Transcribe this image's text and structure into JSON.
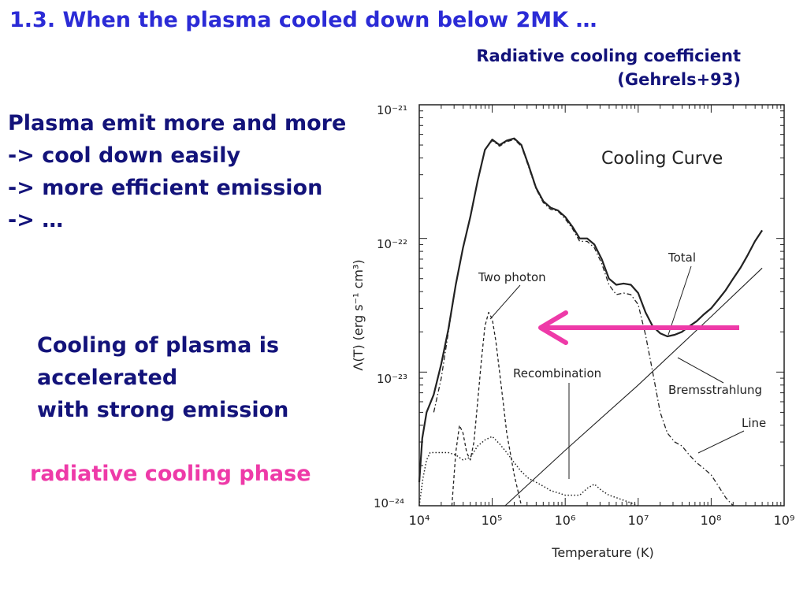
{
  "slide": {
    "title": "1.3. When the plasma cooled down below 2MK …",
    "caption_line1": "Radiative cooling coefficient",
    "caption_line2": "(Gehrels+93)",
    "bullets": [
      "Plasma emit more and more",
      "-> cool down easily",
      "-> more efficient emission",
      "-> …"
    ],
    "note_lines": [
      "Cooling of plasma is",
      "accelerated",
      "with strong emission"
    ],
    "phase_label": "radiative cooling phase",
    "phase_color": "#ee3aa8",
    "title_color": "#2b2bd6",
    "text_color": "#13137a"
  },
  "chart_data": {
    "type": "line",
    "title": "Cooling Curve",
    "xlabel": "Temperature (K)",
    "ylabel": "Λ(T) (erg s⁻¹ cm³)",
    "x_scale": "log",
    "y_scale": "log",
    "xlim": [
      10000,
      1000000000
    ],
    "ylim": [
      1e-24,
      1e-21
    ],
    "x_tick_labels": [
      "10⁴",
      "10⁵",
      "10⁶",
      "10⁷",
      "10⁸",
      "10⁹"
    ],
    "y_tick_labels": [
      "10⁻²⁴",
      "10⁻²³",
      "10⁻²²",
      "10⁻²¹"
    ],
    "series": [
      {
        "name": "Total",
        "style": "solid",
        "points": [
          [
            10000,
            1.5e-24
          ],
          [
            11000,
            3.2e-24
          ],
          [
            12600,
            5e-24
          ],
          [
            15800,
            6.8e-24
          ],
          [
            20000,
            1.15e-23
          ],
          [
            25100,
            2.1e-23
          ],
          [
            31600,
            4.5e-23
          ],
          [
            39800,
            8.5e-23
          ],
          [
            50100,
            1.45e-22
          ],
          [
            63100,
            2.7e-22
          ],
          [
            79400,
            4.6e-22
          ],
          [
            100000,
            5.5e-22
          ],
          [
            126000,
            5e-22
          ],
          [
            158000,
            5.4e-22
          ],
          [
            200000,
            5.6e-22
          ],
          [
            251000,
            5e-22
          ],
          [
            316000,
            3.5e-22
          ],
          [
            398000,
            2.4e-22
          ],
          [
            501000,
            1.9e-22
          ],
          [
            631000,
            1.7e-22
          ],
          [
            794000,
            1.62e-22
          ],
          [
            1000000,
            1.45e-22
          ],
          [
            1260000,
            1.22e-22
          ],
          [
            1580000,
            1e-22
          ],
          [
            2000000,
            1e-22
          ],
          [
            2510000,
            9e-23
          ],
          [
            3160000,
            7e-23
          ],
          [
            3980000,
            5e-23
          ],
          [
            5010000,
            4.5e-23
          ],
          [
            6310000,
            4.6e-23
          ],
          [
            7940000,
            4.5e-23
          ],
          [
            10000000,
            3.9e-23
          ],
          [
            12600000,
            2.8e-23
          ],
          [
            15800000,
            2.2e-23
          ],
          [
            20000000,
            1.95e-23
          ],
          [
            25100000,
            1.85e-23
          ],
          [
            31600000,
            1.9e-23
          ],
          [
            39800000,
            2e-23
          ],
          [
            50100000,
            2.2e-23
          ],
          [
            63100000,
            2.4e-23
          ],
          [
            79400000,
            2.7e-23
          ],
          [
            100000000,
            3e-23
          ],
          [
            126000000,
            3.5e-23
          ],
          [
            158000000,
            4.1e-23
          ],
          [
            200000000,
            5e-23
          ],
          [
            251000000,
            6e-23
          ],
          [
            316000000,
            7.5e-23
          ],
          [
            398000000,
            9.5e-23
          ],
          [
            500000000,
            1.15e-22
          ]
        ]
      },
      {
        "name": "Line",
        "style": "dashdot",
        "points": [
          [
            15800,
            5e-24
          ],
          [
            20000,
            9e-24
          ],
          [
            25100,
            2e-23
          ],
          [
            31600,
            4.5e-23
          ],
          [
            39800,
            8.5e-23
          ],
          [
            50100,
            1.45e-22
          ],
          [
            63100,
            2.7e-22
          ],
          [
            79400,
            4.6e-22
          ],
          [
            100000,
            5.4e-22
          ],
          [
            126000,
            4.9e-22
          ],
          [
            158000,
            5.3e-22
          ],
          [
            200000,
            5.5e-22
          ],
          [
            251000,
            4.9e-22
          ],
          [
            316000,
            3.4e-22
          ],
          [
            398000,
            2.35e-22
          ],
          [
            501000,
            1.85e-22
          ],
          [
            631000,
            1.65e-22
          ],
          [
            794000,
            1.6e-22
          ],
          [
            1000000,
            1.4e-22
          ],
          [
            1260000,
            1.18e-22
          ],
          [
            1580000,
            9.5e-23
          ],
          [
            2000000,
            9.5e-23
          ],
          [
            2510000,
            8.5e-23
          ],
          [
            3160000,
            6.5e-23
          ],
          [
            3980000,
            4.5e-23
          ],
          [
            5010000,
            3.8e-23
          ],
          [
            6310000,
            3.9e-23
          ],
          [
            7940000,
            3.8e-23
          ],
          [
            10000000,
            3.2e-23
          ],
          [
            12600000,
            1.9e-23
          ],
          [
            15800000,
            1e-23
          ],
          [
            20000000,
            5e-24
          ],
          [
            25100000,
            3.5e-24
          ],
          [
            31600000,
            3e-24
          ],
          [
            39800000,
            2.8e-24
          ],
          [
            50100000,
            2.4e-24
          ],
          [
            63100000,
            2.1e-24
          ],
          [
            79400000,
            1.9e-24
          ],
          [
            100000000,
            1.7e-24
          ],
          [
            126000000,
            1.4e-24
          ],
          [
            158000000,
            1.15e-24
          ],
          [
            200000000,
            1e-24
          ]
        ]
      },
      {
        "name": "Two photon",
        "style": "dashed",
        "points": [
          [
            28000,
            1e-24
          ],
          [
            31600,
            2.5e-24
          ],
          [
            35500,
            4e-24
          ],
          [
            39800,
            3.5e-24
          ],
          [
            44700,
            2.5e-24
          ],
          [
            50100,
            2.2e-24
          ],
          [
            56200,
            3e-24
          ],
          [
            63100,
            6e-24
          ],
          [
            70800,
            1.2e-23
          ],
          [
            79400,
            2.2e-23
          ],
          [
            89100,
            2.8e-23
          ],
          [
            100000,
            2.5e-23
          ],
          [
            112000,
            1.7e-23
          ],
          [
            126000,
            1e-23
          ],
          [
            141000,
            6e-24
          ],
          [
            158000,
            3.5e-24
          ],
          [
            200000,
            1.7e-24
          ],
          [
            251000,
            1e-24
          ]
        ]
      },
      {
        "name": "Recombination",
        "style": "dotted",
        "points": [
          [
            10000,
            1e-24
          ],
          [
            11200,
            1.6e-24
          ],
          [
            12600,
            2.2e-24
          ],
          [
            14100,
            2.5e-24
          ],
          [
            15800,
            2.5e-24
          ],
          [
            20000,
            2.5e-24
          ],
          [
            25100,
            2.5e-24
          ],
          [
            31600,
            2.4e-24
          ],
          [
            39800,
            2.2e-24
          ],
          [
            50100,
            2.3e-24
          ],
          [
            63100,
            2.8e-24
          ],
          [
            79400,
            3.1e-24
          ],
          [
            100000,
            3.3e-24
          ],
          [
            126000,
            2.9e-24
          ],
          [
            158000,
            2.5e-24
          ],
          [
            200000,
            2.1e-24
          ],
          [
            251000,
            1.8e-24
          ],
          [
            316000,
            1.6e-24
          ],
          [
            398000,
            1.5e-24
          ],
          [
            501000,
            1.4e-24
          ],
          [
            631000,
            1.3e-24
          ],
          [
            794000,
            1.25e-24
          ],
          [
            1000000,
            1.2e-24
          ],
          [
            1260000,
            1.2e-24
          ],
          [
            1580000,
            1.2e-24
          ],
          [
            2000000,
            1.35e-24
          ],
          [
            2510000,
            1.45e-24
          ],
          [
            3160000,
            1.3e-24
          ],
          [
            3980000,
            1.2e-24
          ],
          [
            5010000,
            1.15e-24
          ],
          [
            6310000,
            1.1e-24
          ],
          [
            7940000,
            1.05e-24
          ],
          [
            10000000,
            1e-24
          ]
        ]
      },
      {
        "name": "Bremsstrahlung",
        "style": "solid-thin",
        "points": [
          [
            150000,
            1e-24
          ],
          [
            1000000,
            2.6e-24
          ],
          [
            10000000,
            8e-24
          ],
          [
            100000000,
            2.6e-23
          ],
          [
            500000000,
            6e-23
          ]
        ]
      }
    ],
    "annotations": [
      "Two photon",
      "Recombination",
      "Total",
      "Bremsstrahlung",
      "Line"
    ],
    "arrow": {
      "color": "#ee3aa8",
      "direction": "left"
    }
  }
}
